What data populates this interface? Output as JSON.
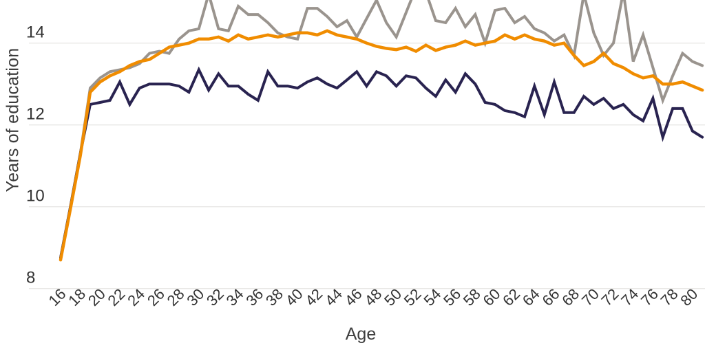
{
  "chart_data": {
    "type": "line",
    "title": "",
    "xlabel": "Age",
    "ylabel": "Years of education",
    "x": [
      16,
      17,
      18,
      19,
      20,
      21,
      22,
      23,
      24,
      25,
      26,
      27,
      28,
      29,
      30,
      31,
      32,
      33,
      34,
      35,
      36,
      37,
      38,
      39,
      40,
      41,
      42,
      43,
      44,
      45,
      46,
      47,
      48,
      49,
      50,
      51,
      52,
      53,
      54,
      55,
      56,
      57,
      58,
      59,
      60,
      61,
      62,
      63,
      64,
      65,
      66,
      67,
      68,
      69,
      70,
      71,
      72,
      73,
      74,
      75,
      76,
      77,
      78,
      79,
      80,
      81
    ],
    "xticks": [
      16,
      18,
      20,
      22,
      24,
      26,
      28,
      30,
      32,
      34,
      36,
      38,
      40,
      42,
      44,
      46,
      48,
      50,
      52,
      54,
      56,
      58,
      60,
      62,
      64,
      66,
      68,
      70,
      72,
      74,
      76,
      78,
      80
    ],
    "yticks": [
      8,
      10,
      12,
      14
    ],
    "xlim": [
      16,
      81
    ],
    "ylim_visible": [
      7.5,
      15.05
    ],
    "grid": "horizontal-only",
    "legend": "none",
    "series": [
      {
        "name": "gray",
        "color": "#9A948E",
        "values": [
          8.75,
          10.0,
          11.3,
          12.9,
          13.15,
          13.3,
          13.35,
          13.4,
          13.5,
          13.75,
          13.8,
          13.75,
          14.1,
          14.3,
          14.35,
          15.2,
          14.35,
          14.3,
          14.9,
          14.7,
          14.7,
          14.5,
          14.25,
          14.15,
          14.1,
          14.85,
          14.85,
          14.65,
          14.4,
          14.55,
          14.15,
          14.6,
          15.05,
          14.5,
          14.15,
          14.75,
          15.35,
          15.25,
          14.55,
          14.5,
          14.85,
          14.4,
          14.7,
          14.0,
          14.8,
          14.85,
          14.5,
          14.65,
          14.35,
          14.25,
          14.05,
          14.2,
          13.7,
          15.2,
          14.25,
          13.7,
          14.0,
          15.25,
          13.55,
          14.2,
          13.4,
          12.6,
          13.2,
          13.75,
          13.55,
          13.45
        ]
      },
      {
        "name": "navy",
        "color": "#292350",
        "values": [
          8.75,
          10.0,
          11.3,
          12.5,
          12.55,
          12.6,
          13.05,
          12.5,
          12.9,
          13.0,
          13.0,
          13.0,
          12.95,
          12.8,
          13.35,
          12.85,
          13.25,
          12.95,
          12.95,
          12.75,
          12.6,
          13.3,
          12.95,
          12.95,
          12.9,
          13.05,
          13.15,
          13.0,
          12.9,
          13.1,
          13.3,
          12.95,
          13.3,
          13.2,
          12.95,
          13.2,
          13.15,
          12.9,
          12.7,
          13.1,
          12.8,
          13.25,
          13.0,
          12.55,
          12.5,
          12.35,
          12.3,
          12.2,
          12.95,
          12.25,
          13.05,
          12.3,
          12.3,
          12.7,
          12.5,
          12.65,
          12.4,
          12.5,
          12.25,
          12.1,
          12.65,
          11.7,
          12.4,
          12.4,
          11.85,
          11.7
        ]
      },
      {
        "name": "orange",
        "color": "#F08C00",
        "values": [
          8.7,
          9.95,
          11.25,
          12.8,
          13.05,
          13.2,
          13.3,
          13.45,
          13.55,
          13.6,
          13.75,
          13.9,
          13.95,
          14.0,
          14.1,
          14.1,
          14.15,
          14.05,
          14.2,
          14.1,
          14.15,
          14.2,
          14.15,
          14.2,
          14.25,
          14.25,
          14.2,
          14.3,
          14.2,
          14.15,
          14.1,
          14.0,
          13.92,
          13.87,
          13.84,
          13.9,
          13.8,
          13.95,
          13.82,
          13.9,
          13.95,
          14.05,
          13.95,
          14.0,
          14.05,
          14.2,
          14.1,
          14.2,
          14.1,
          14.05,
          13.95,
          14.0,
          13.7,
          13.45,
          13.55,
          13.75,
          13.5,
          13.4,
          13.25,
          13.15,
          13.2,
          13.0,
          13.0,
          13.05,
          12.95,
          12.85
        ]
      }
    ],
    "colors": {
      "grid": "#E8E7E5",
      "tick_text": "#333333",
      "axis_title_text": "#3d3d3d"
    }
  }
}
